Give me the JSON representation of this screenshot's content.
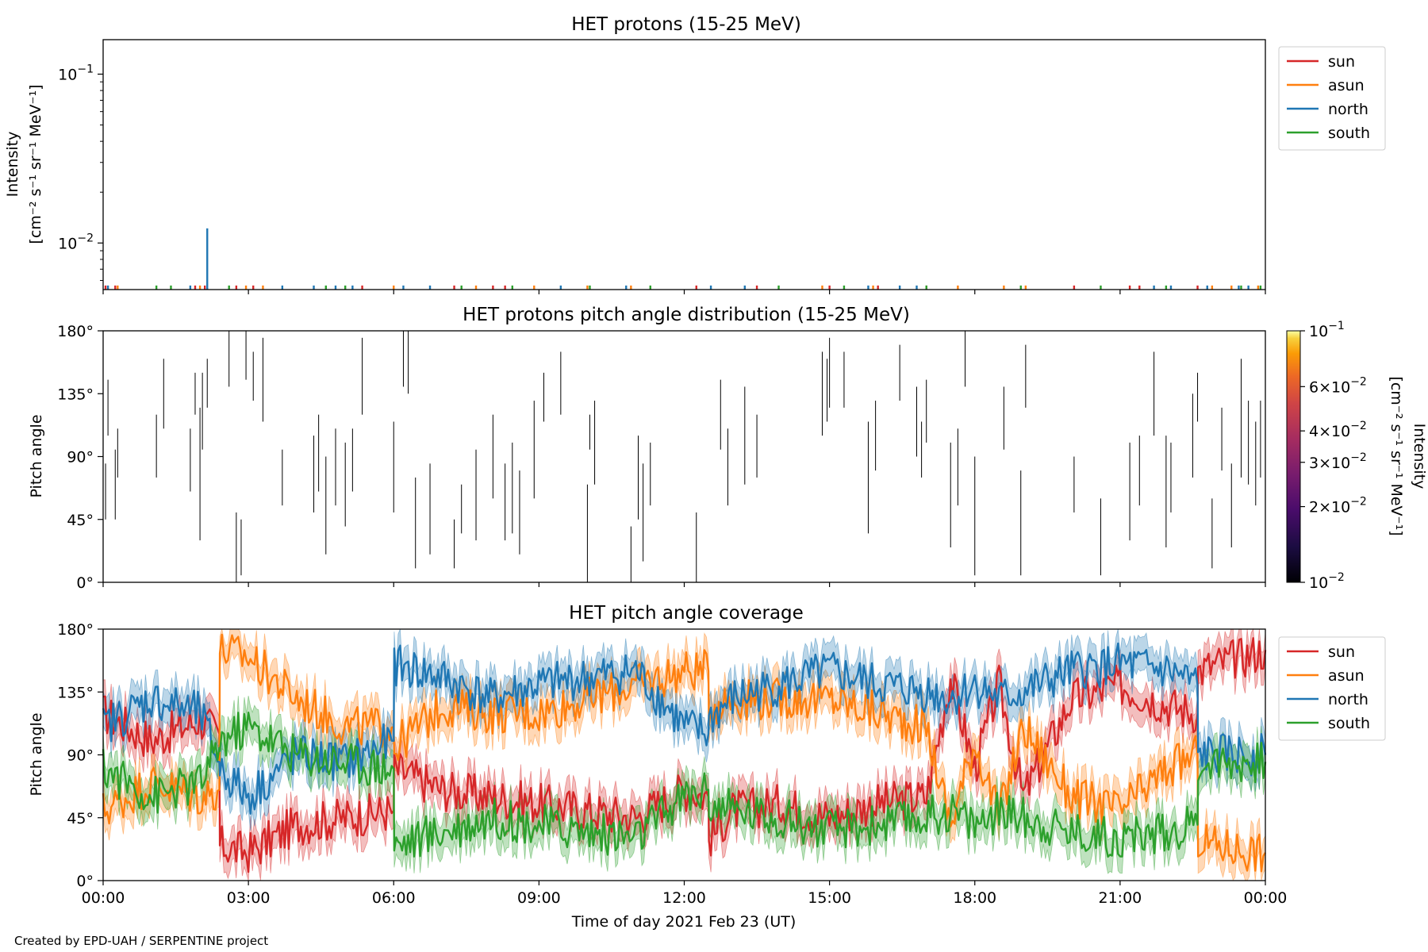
{
  "credit": "Created by EPD-UAH / SERPENTINE project",
  "colors": {
    "sun": "#d62728",
    "asun": "#ff7f0e",
    "north": "#1f77b4",
    "south": "#2ca02c",
    "pad": "#000000"
  },
  "chart_data": [
    {
      "type": "bar",
      "title": "HET protons (15-25 MeV)",
      "ylabel": [
        "Intensity",
        "[cm⁻² s⁻¹ sr⁻¹ MeV⁻¹]"
      ],
      "yscale": "log",
      "ylim": [
        0.0053,
        0.16
      ],
      "yticks": [
        {
          "value": 0.1,
          "base": "10",
          "exp": "−1"
        },
        {
          "value": 0.01,
          "base": "10",
          "exp": "−2"
        }
      ],
      "xlim": [
        0,
        24
      ],
      "legend": {
        "placement": "outside-right",
        "entries": [
          "sun",
          "asun",
          "north",
          "south"
        ]
      },
      "series": [
        {
          "name": "sun",
          "color": "#d62728",
          "x": [
            0.05,
            0.25,
            1.9,
            2.1,
            2.75,
            3.1,
            5.35,
            7.25,
            8.05,
            8.3,
            12.25,
            13.5,
            15.0,
            16.0,
            17.0,
            20.05,
            21.2,
            21.4,
            22.6
          ],
          "y": [
            0.0056,
            0.0056,
            0.0056,
            0.0056,
            0.0056,
            0.0056,
            0.0056,
            0.0056,
            0.0056,
            0.0056,
            0.0056,
            0.0056,
            0.0056,
            0.0056,
            0.0056,
            0.0056,
            0.0056,
            0.0056,
            0.0056
          ]
        },
        {
          "name": "asun",
          "color": "#ff7f0e",
          "x": [
            0.3,
            2.0,
            2.95,
            3.3,
            6.0,
            7.7,
            8.9,
            10.0,
            10.9,
            14.85,
            15.9,
            17.65,
            18.6,
            19.05,
            22.9,
            23.3,
            23.85
          ],
          "y": [
            0.0056,
            0.0056,
            0.0056,
            0.0056,
            0.0056,
            0.0056,
            0.0056,
            0.0056,
            0.0056,
            0.0056,
            0.0056,
            0.0056,
            0.0056,
            0.0056,
            0.0056,
            0.0056,
            0.0056
          ]
        },
        {
          "name": "north",
          "color": "#1f77b4",
          "x": [
            0.1,
            1.8,
            2.15,
            3.7,
            4.35,
            4.8,
            5.15,
            6.2,
            6.75,
            9.45,
            10.8,
            12.55,
            13.25,
            15.8,
            16.45,
            16.8,
            21.7,
            22.05,
            22.8,
            23.45,
            23.65
          ],
          "y": [
            0.0056,
            0.0056,
            0.0122,
            0.0056,
            0.0056,
            0.0056,
            0.0056,
            0.0056,
            0.0056,
            0.0056,
            0.0056,
            0.0056,
            0.0056,
            0.0056,
            0.0056,
            0.0056,
            0.0056,
            0.0056,
            0.0056,
            0.0056,
            0.0056
          ]
        },
        {
          "name": "south",
          "color": "#2ca02c",
          "x": [
            1.1,
            1.4,
            2.6,
            4.6,
            5.0,
            7.4,
            8.45,
            10.05,
            11.3,
            13.95,
            15.3,
            17.0,
            18.95,
            20.6,
            21.95,
            23.5,
            23.9
          ],
          "y": [
            0.0056,
            0.0056,
            0.0056,
            0.0056,
            0.0056,
            0.0056,
            0.0056,
            0.0056,
            0.0056,
            0.0056,
            0.0056,
            0.0056,
            0.0056,
            0.0056,
            0.0056,
            0.0056,
            0.0056
          ]
        }
      ]
    },
    {
      "type": "heatmap",
      "title": "HET protons pitch angle distribution (15-25 MeV)",
      "ylabel": "Pitch angle",
      "ylim": [
        0,
        180
      ],
      "yticks": [
        "0°",
        "45°",
        "90°",
        "135°",
        "180°"
      ],
      "xlim": [
        0,
        24
      ],
      "colorbar": {
        "label": [
          "Intensity",
          "[cm⁻² s⁻¹ sr⁻¹ MeV⁻¹]"
        ],
        "scale": "log",
        "range": [
          0.01,
          0.1
        ],
        "colormap": "inferno",
        "ticks": [
          {
            "value": 0.1,
            "mant": "",
            "exp": "−1"
          },
          {
            "value": 0.06,
            "mant": "6",
            "exp": "−2"
          },
          {
            "value": 0.04,
            "mant": "4",
            "exp": "−2"
          },
          {
            "value": 0.03,
            "mant": "3",
            "exp": "−2"
          },
          {
            "value": 0.02,
            "mant": "2",
            "exp": "−2"
          },
          {
            "value": 0.01,
            "mant": "",
            "exp": "−2"
          }
        ]
      },
      "segments": [
        [
          0.05,
          45,
          85
        ],
        [
          0.1,
          105,
          145
        ],
        [
          0.25,
          45,
          95
        ],
        [
          0.3,
          75,
          110
        ],
        [
          1.1,
          75,
          120
        ],
        [
          1.25,
          110,
          160
        ],
        [
          1.8,
          65,
          110
        ],
        [
          1.9,
          120,
          150
        ],
        [
          2.0,
          30,
          125
        ],
        [
          2.05,
          95,
          150
        ],
        [
          2.15,
          125,
          160
        ],
        [
          2.6,
          140,
          180
        ],
        [
          2.75,
          0,
          50
        ],
        [
          2.85,
          5,
          45
        ],
        [
          2.95,
          145,
          180
        ],
        [
          3.1,
          130,
          165
        ],
        [
          3.3,
          115,
          175
        ],
        [
          3.7,
          55,
          95
        ],
        [
          4.35,
          50,
          105
        ],
        [
          4.45,
          65,
          120
        ],
        [
          4.6,
          20,
          90
        ],
        [
          4.8,
          55,
          110
        ],
        [
          5.0,
          40,
          100
        ],
        [
          5.15,
          65,
          110
        ],
        [
          5.35,
          120,
          175
        ],
        [
          6.0,
          50,
          115
        ],
        [
          6.2,
          140,
          180
        ],
        [
          6.3,
          135,
          180
        ],
        [
          6.45,
          10,
          75
        ],
        [
          6.75,
          20,
          85
        ],
        [
          7.25,
          10,
          45
        ],
        [
          7.4,
          35,
          70
        ],
        [
          7.7,
          30,
          95
        ],
        [
          8.05,
          60,
          120
        ],
        [
          8.3,
          30,
          85
        ],
        [
          8.45,
          35,
          100
        ],
        [
          8.6,
          20,
          80
        ],
        [
          8.9,
          60,
          130
        ],
        [
          9.1,
          115,
          150
        ],
        [
          9.45,
          120,
          165
        ],
        [
          10.0,
          0,
          70
        ],
        [
          10.05,
          95,
          120
        ],
        [
          10.15,
          70,
          130
        ],
        [
          10.9,
          0,
          40
        ],
        [
          11.05,
          45,
          105
        ],
        [
          11.15,
          15,
          85
        ],
        [
          11.3,
          55,
          100
        ],
        [
          12.25,
          0,
          50
        ],
        [
          12.75,
          95,
          145
        ],
        [
          12.9,
          55,
          110
        ],
        [
          13.25,
          70,
          140
        ],
        [
          13.5,
          75,
          120
        ],
        [
          14.85,
          105,
          165
        ],
        [
          14.95,
          115,
          160
        ],
        [
          15.0,
          125,
          175
        ],
        [
          15.3,
          125,
          165
        ],
        [
          15.8,
          35,
          115
        ],
        [
          15.95,
          80,
          130
        ],
        [
          16.45,
          130,
          170
        ],
        [
          16.8,
          90,
          140
        ],
        [
          16.9,
          75,
          115
        ],
        [
          17.0,
          100,
          145
        ],
        [
          17.5,
          25,
          100
        ],
        [
          17.65,
          55,
          110
        ],
        [
          17.8,
          140,
          180
        ],
        [
          18.0,
          5,
          90
        ],
        [
          18.6,
          95,
          140
        ],
        [
          18.95,
          5,
          80
        ],
        [
          19.05,
          125,
          170
        ],
        [
          20.05,
          50,
          90
        ],
        [
          20.6,
          5,
          60
        ],
        [
          21.2,
          30,
          100
        ],
        [
          21.4,
          55,
          105
        ],
        [
          21.7,
          105,
          165
        ],
        [
          21.95,
          25,
          105
        ],
        [
          22.05,
          50,
          100
        ],
        [
          22.5,
          75,
          135
        ],
        [
          22.6,
          115,
          150
        ],
        [
          22.9,
          10,
          60
        ],
        [
          23.1,
          80,
          125
        ],
        [
          23.3,
          25,
          85
        ],
        [
          23.5,
          75,
          160
        ],
        [
          23.65,
          70,
          130
        ],
        [
          23.8,
          55,
          115
        ],
        [
          23.9,
          75,
          130
        ]
      ]
    },
    {
      "type": "line",
      "title": "HET pitch angle coverage",
      "ylabel": "Pitch angle",
      "xlabel": "Time of day 2021 Feb 23 (UT)",
      "ylim": [
        0,
        180
      ],
      "yticks": [
        "0°",
        "45°",
        "90°",
        "135°",
        "180°"
      ],
      "xlim": [
        0,
        24
      ],
      "xticks": [
        "00:00",
        "03:00",
        "06:00",
        "09:00",
        "12:00",
        "15:00",
        "18:00",
        "21:00",
        "00:00"
      ],
      "legend": {
        "placement": "outside-right",
        "entries": [
          "sun",
          "asun",
          "north",
          "south"
        ]
      },
      "band_halfwidth": 12,
      "series": [
        {
          "name": "sun",
          "color": "#d62728",
          "x": [
            0,
            1,
            2,
            2.4,
            2.41,
            3,
            4,
            5,
            6,
            6.01,
            7,
            8,
            9,
            10,
            11,
            12,
            12.5,
            12.51,
            13,
            14,
            15,
            16,
            17,
            17.5,
            18,
            18.5,
            19,
            20,
            21,
            22,
            22.6,
            22.61,
            23,
            24
          ],
          "y": [
            120,
            100,
            115,
            105,
            25,
            20,
            40,
            45,
            50,
            80,
            65,
            60,
            55,
            50,
            45,
            65,
            60,
            30,
            50,
            55,
            45,
            55,
            60,
            145,
            80,
            140,
            60,
            130,
            140,
            125,
            120,
            150,
            155,
            165
          ]
        },
        {
          "name": "asun",
          "color": "#ff7f0e",
          "x": [
            0,
            1,
            2,
            2.4,
            2.41,
            3,
            4,
            5,
            6,
            6.01,
            7,
            8,
            9,
            10,
            11,
            12,
            12.5,
            12.51,
            13,
            14,
            15,
            16,
            17,
            17.5,
            18,
            18.5,
            19,
            20,
            21,
            22,
            22.6,
            22.61,
            23,
            24
          ],
          "y": [
            50,
            70,
            60,
            65,
            165,
            160,
            130,
            110,
            110,
            95,
            125,
            120,
            120,
            130,
            140,
            150,
            150,
            125,
            130,
            130,
            130,
            120,
            110,
            40,
            100,
            45,
            110,
            60,
            50,
            80,
            90,
            30,
            25,
            20
          ]
        },
        {
          "name": "north",
          "color": "#1f77b4",
          "x": [
            0,
            1,
            2,
            2.4,
            2.41,
            3,
            4,
            5,
            6,
            6.01,
            7,
            8,
            9,
            10,
            11,
            12,
            12.5,
            12.51,
            13,
            14,
            15,
            16,
            17,
            17.5,
            18,
            18.5,
            19,
            20,
            21,
            22,
            22.6,
            22.61,
            23,
            24
          ],
          "y": [
            110,
            130,
            120,
            85,
            80,
            60,
            90,
            85,
            100,
            155,
            145,
            130,
            140,
            145,
            150,
            110,
            105,
            115,
            130,
            140,
            150,
            140,
            135,
            130,
            140,
            130,
            135,
            150,
            155,
            150,
            140,
            90,
            90,
            90
          ]
        },
        {
          "name": "south",
          "color": "#2ca02c",
          "x": [
            0,
            1,
            2,
            2.4,
            2.41,
            3,
            4,
            5,
            6,
            6.01,
            7,
            8,
            9,
            10,
            11,
            12,
            12.5,
            12.51,
            13,
            14,
            15,
            16,
            17,
            17.5,
            18,
            18.5,
            19,
            20,
            21,
            22,
            22.6,
            22.61,
            23,
            24
          ],
          "y": [
            80,
            60,
            70,
            95,
            100,
            110,
            90,
            85,
            80,
            25,
            35,
            45,
            40,
            35,
            30,
            60,
            65,
            55,
            50,
            45,
            35,
            40,
            45,
            50,
            40,
            50,
            45,
            35,
            30,
            35,
            40,
            85,
            85,
            85
          ]
        }
      ]
    }
  ]
}
